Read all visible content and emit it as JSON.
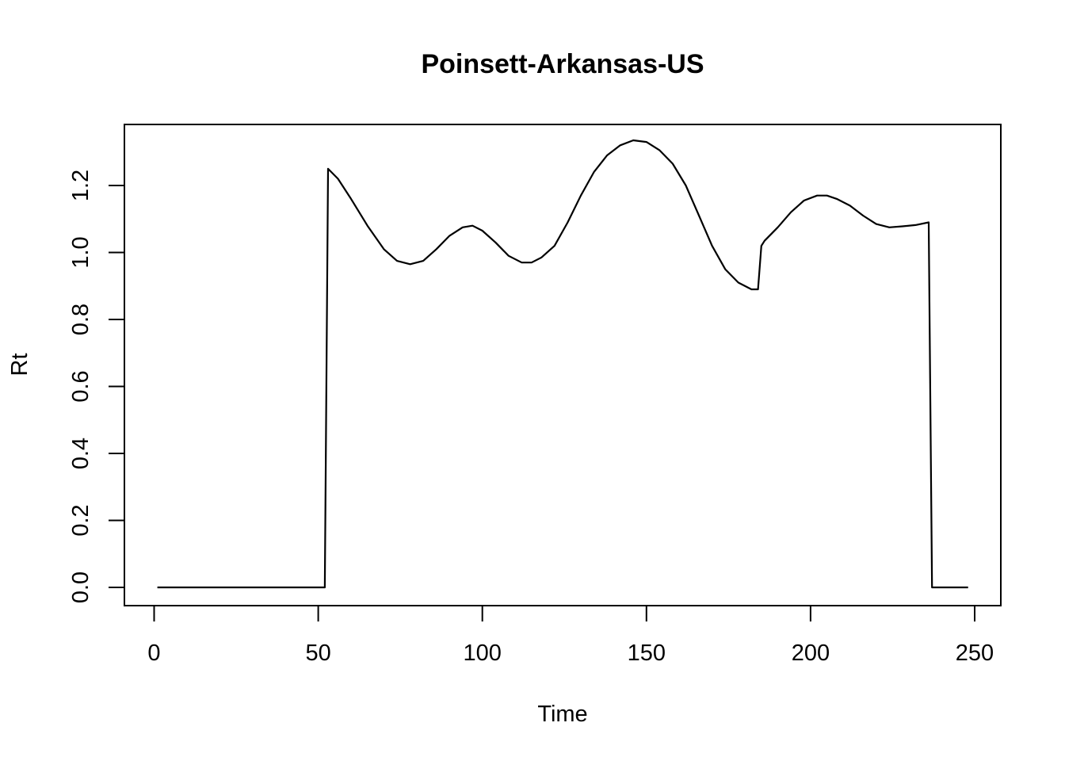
{
  "chart_data": {
    "type": "line",
    "title": "Poinsett-Arkansas-US",
    "xlabel": "Time",
    "ylabel": "Rt",
    "xlim": [
      0,
      250
    ],
    "ylim": [
      0,
      1.3
    ],
    "x_ticks": [
      0,
      50,
      100,
      150,
      200,
      250
    ],
    "y_ticks": [
      0.0,
      0.2,
      0.4,
      0.6,
      0.8,
      1.0,
      1.2
    ],
    "x_tick_labels": [
      "0",
      "50",
      "100",
      "150",
      "200",
      "250"
    ],
    "y_tick_labels": [
      "0.0",
      "0.2",
      "0.4",
      "0.6",
      "0.8",
      "1.0",
      "1.2"
    ],
    "grid": false,
    "series": [
      {
        "x": [
          1,
          10,
          20,
          30,
          40,
          52,
          53,
          56,
          60,
          65,
          70,
          74,
          78,
          82,
          86,
          90,
          94,
          97,
          100,
          104,
          108,
          112,
          115,
          118,
          122,
          126,
          130,
          134,
          138,
          142,
          146,
          150,
          154,
          158,
          162,
          166,
          170,
          174,
          178,
          182,
          184,
          185,
          186,
          190,
          194,
          198,
          202,
          205,
          208,
          212,
          216,
          220,
          224,
          228,
          232,
          236,
          237,
          240,
          245,
          248
        ],
        "values": [
          0,
          0,
          0,
          0,
          0,
          0,
          1.25,
          1.22,
          1.16,
          1.08,
          1.01,
          0.975,
          0.965,
          0.975,
          1.01,
          1.05,
          1.075,
          1.08,
          1.065,
          1.03,
          0.99,
          0.97,
          0.97,
          0.985,
          1.02,
          1.09,
          1.17,
          1.24,
          1.29,
          1.32,
          1.335,
          1.33,
          1.305,
          1.265,
          1.2,
          1.11,
          1.02,
          0.95,
          0.91,
          0.89,
          0.89,
          1.02,
          1.035,
          1.075,
          1.12,
          1.155,
          1.17,
          1.17,
          1.16,
          1.14,
          1.11,
          1.085,
          1.075,
          1.078,
          1.082,
          1.09,
          0.0,
          0,
          0,
          0
        ]
      }
    ]
  }
}
